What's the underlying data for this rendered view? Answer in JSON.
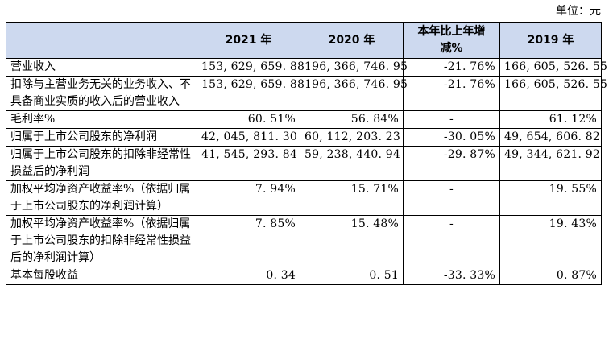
{
  "unit_label": "单位：元",
  "table": {
    "headers": [
      "",
      "2021 年",
      "2020 年",
      "本年比上年增减%",
      "2019 年"
    ],
    "rows": [
      {
        "label": "营业收入",
        "v2021": "153, 629, 659. 88",
        "v2020": "196, 366, 746. 95",
        "change": "-21. 76%",
        "v2019": "166, 605, 526. 55"
      },
      {
        "label": "扣除与主营业务无关的业务收入、不具备商业实质的收入后的营业收入",
        "v2021": "153, 629, 659. 88",
        "v2020": "196, 366, 746. 95",
        "change": "-21. 76%",
        "v2019": "166, 605, 526. 55"
      },
      {
        "label": "毛利率%",
        "v2021": "60. 51%",
        "v2020": "56. 84%",
        "change": "-",
        "v2019": "61. 12%"
      },
      {
        "label": "归属于上市公司股东的净利润",
        "v2021": "42, 045, 811. 30",
        "v2020": "60, 112, 203. 23",
        "change": "-30. 05%",
        "v2019": "49, 654, 606. 82"
      },
      {
        "label": "归属于上市公司股东的扣除非经常性损益后的净利润",
        "v2021": "41, 545, 293. 84",
        "v2020": "59, 238, 440. 94",
        "change": "-29. 87%",
        "v2019": "49, 344, 621. 92"
      },
      {
        "label": "加权平均净资产收益率%（依据归属于上市公司股东的净利润计算）",
        "v2021": "7. 94%",
        "v2020": "15. 71%",
        "change": "-",
        "v2019": "19. 55%"
      },
      {
        "label": "加权平均净资产收益率%（依据归属于上市公司股东的扣除非经常性损益后的净利润计算）",
        "v2021": "7. 85%",
        "v2020": "15. 48%",
        "change": "-",
        "v2019": "19. 43%"
      },
      {
        "label": "基本每股收益",
        "v2021": "0. 34",
        "v2020": "0. 51",
        "change": "-33. 33%",
        "v2019": "0. 87%"
      }
    ]
  }
}
